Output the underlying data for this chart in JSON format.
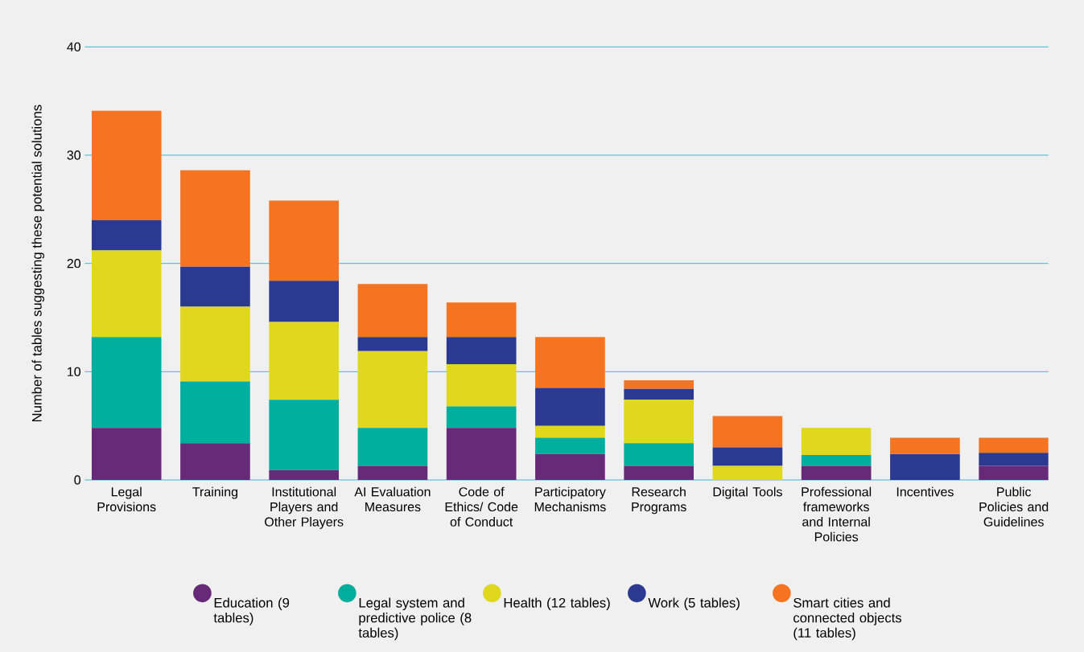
{
  "chart_data": {
    "type": "bar",
    "stacked": true,
    "ylabel": "Number of tables suggesting these potential solutions",
    "categories": [
      "Legal Provisions",
      "Training",
      "Institutional Players and Other Players",
      "AI Evaluation Measures",
      "Code of Ethics/ Code of Conduct",
      "Participatory Mechanisms",
      "Research Programs",
      "Digital Tools",
      "Professional frameworks and Internal Policies",
      "Incentives",
      "Public Policies and Guidelines"
    ],
    "series": [
      {
        "name": "Education (9 tables)",
        "color": "#662a78",
        "values": [
          4.8,
          3.4,
          0.9,
          1.3,
          4.8,
          2.4,
          1.3,
          0,
          1.3,
          0,
          1.3
        ]
      },
      {
        "name": "Legal system and predictive police (8 tables)",
        "color": "#00ae9e",
        "values": [
          8.4,
          5.7,
          6.5,
          3.5,
          2.0,
          1.5,
          2.1,
          0,
          1.0,
          0,
          0
        ]
      },
      {
        "name": "Health (12 tables)",
        "color": "#e0d71f",
        "values": [
          8.0,
          6.9,
          7.2,
          7.1,
          3.9,
          1.1,
          4.0,
          1.3,
          2.5,
          0,
          0
        ]
      },
      {
        "name": "Work (5 tables)",
        "color": "#2b3990",
        "values": [
          2.8,
          3.7,
          3.8,
          1.3,
          2.5,
          3.5,
          1.0,
          1.7,
          0,
          2.4,
          1.2
        ]
      },
      {
        "name": "Smart cities and connected objects (11 tables)",
        "color": "#f47421",
        "values": [
          10.1,
          8.9,
          7.4,
          4.9,
          3.2,
          4.7,
          0.8,
          2.9,
          0,
          1.5,
          1.4
        ]
      }
    ],
    "ylim": [
      0,
      40
    ],
    "yticks": [
      0,
      10,
      20,
      30,
      40
    ],
    "grid": "y",
    "legend": "bottom"
  }
}
